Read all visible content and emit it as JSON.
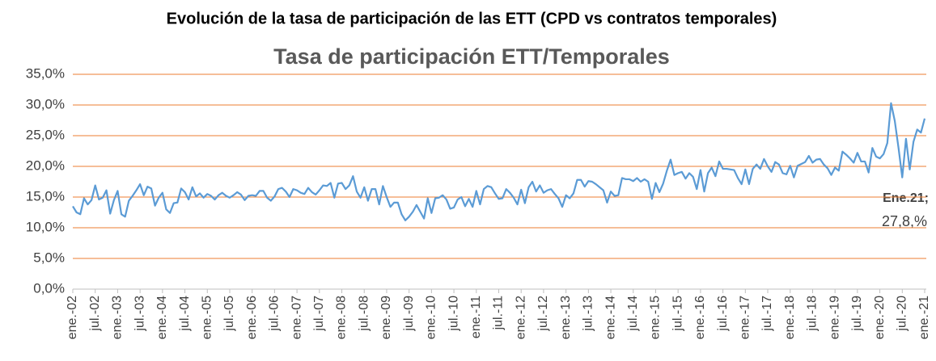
{
  "heading": "Evolución de la tasa de participación de las ETT (CPD vs contratos temporales)",
  "chart_data": {
    "type": "line",
    "title": "Tasa de participación ETT/Temporales",
    "categories": [
      "ene.-02",
      null,
      null,
      null,
      null,
      null,
      "jul.-02",
      null,
      null,
      null,
      null,
      null,
      "ene.-03",
      null,
      null,
      null,
      null,
      null,
      "jul.-03",
      null,
      null,
      null,
      null,
      null,
      "ene.-04",
      null,
      null,
      null,
      null,
      null,
      "jul.-04",
      null,
      null,
      null,
      null,
      null,
      "ene.-05",
      null,
      null,
      null,
      null,
      null,
      "jul.-05",
      null,
      null,
      null,
      null,
      null,
      "ene.-06",
      null,
      null,
      null,
      null,
      null,
      "jul.-06",
      null,
      null,
      null,
      null,
      null,
      "ene.-07",
      null,
      null,
      null,
      null,
      null,
      "jul.-07",
      null,
      null,
      null,
      null,
      null,
      "ene.-08",
      null,
      null,
      null,
      null,
      null,
      "jul.-08",
      null,
      null,
      null,
      null,
      null,
      "ene.-09",
      null,
      null,
      null,
      null,
      null,
      "jul.-09",
      null,
      null,
      null,
      null,
      null,
      "ene.-10",
      null,
      null,
      null,
      null,
      null,
      "jul.-10",
      null,
      null,
      null,
      null,
      null,
      "ene.-11",
      null,
      null,
      null,
      null,
      null,
      "jul.-11",
      null,
      null,
      null,
      null,
      null,
      "ene.-12",
      null,
      null,
      null,
      null,
      null,
      "jul.-12",
      null,
      null,
      null,
      null,
      null,
      "ene.-13",
      null,
      null,
      null,
      null,
      null,
      "jul.-13",
      null,
      null,
      null,
      null,
      null,
      "ene.-14",
      null,
      null,
      null,
      null,
      null,
      "jul.-14",
      null,
      null,
      null,
      null,
      null,
      "ene.-15",
      null,
      null,
      null,
      null,
      null,
      "jul.-15",
      null,
      null,
      null,
      null,
      null,
      "ene.-16",
      null,
      null,
      null,
      null,
      null,
      "jul.-16",
      null,
      null,
      null,
      null,
      null,
      "ene.-17",
      null,
      null,
      null,
      null,
      null,
      "jul.-17",
      null,
      null,
      null,
      null,
      null,
      "ene.-18",
      null,
      null,
      null,
      null,
      null,
      "jul.-18",
      null,
      null,
      null,
      null,
      null,
      "ene.-19",
      null,
      null,
      null,
      null,
      null,
      "jul.-19",
      null,
      null,
      null,
      null,
      null,
      "ene.-20",
      null,
      null,
      null,
      null,
      null,
      "jul.-20",
      null,
      null,
      null,
      null,
      null,
      "ene.-21"
    ],
    "series": [
      {
        "name": "Tasa de participación ETT/Temporales",
        "color": "#5b9bd5",
        "values": [
          13.5,
          12.5,
          12.2,
          14.8,
          13.8,
          14.5,
          16.9,
          14.6,
          14.9,
          16.1,
          12.3,
          14.5,
          16.0,
          12.2,
          11.8,
          14.4,
          15.2,
          16.1,
          17.1,
          15.3,
          16.7,
          16.4,
          13.6,
          14.9,
          15.7,
          13.0,
          12.4,
          14.0,
          14.1,
          16.4,
          15.8,
          14.6,
          16.6,
          15.1,
          15.6,
          14.9,
          15.5,
          15.2,
          14.6,
          15.3,
          15.7,
          15.2,
          14.9,
          15.3,
          15.8,
          15.4,
          14.5,
          15.2,
          15.3,
          15.2,
          16.0,
          16.0,
          14.9,
          14.4,
          15.1,
          16.3,
          16.5,
          15.9,
          15.0,
          16.3,
          16.1,
          15.7,
          15.5,
          16.5,
          15.8,
          15.4,
          16.1,
          16.9,
          16.8,
          17.3,
          14.9,
          17.2,
          17.3,
          16.3,
          16.9,
          18.4,
          15.9,
          14.9,
          16.6,
          14.4,
          16.3,
          16.3,
          13.8,
          16.8,
          15.0,
          13.4,
          14.1,
          14.1,
          12.2,
          11.2,
          11.8,
          12.6,
          13.7,
          12.6,
          11.5,
          14.8,
          12.4,
          14.8,
          14.9,
          15.3,
          14.6,
          13.1,
          13.3,
          14.6,
          15.0,
          13.5,
          14.7,
          13.4,
          16.0,
          13.8,
          16.3,
          16.8,
          16.6,
          15.6,
          14.7,
          14.8,
          16.3,
          15.7,
          14.9,
          13.8,
          16.2,
          14.0,
          16.6,
          17.5,
          15.9,
          16.9,
          15.7,
          16.1,
          16.3,
          15.5,
          14.8,
          13.4,
          15.3,
          14.8,
          15.6,
          17.8,
          17.8,
          16.7,
          17.6,
          17.5,
          17.1,
          16.6,
          16.1,
          14.1,
          15.9,
          15.2,
          15.3,
          18.1,
          17.9,
          17.9,
          17.6,
          18.1,
          17.5,
          17.9,
          17.5,
          14.7,
          17.3,
          15.8,
          17.2,
          19.3,
          21.1,
          18.6,
          18.9,
          19.1,
          18.0,
          18.9,
          18.3,
          16.3,
          19.4,
          15.9,
          18.9,
          19.8,
          18.4,
          20.8,
          19.6,
          19.6,
          19.5,
          19.4,
          18.1,
          17.1,
          19.5,
          17.1,
          19.6,
          20.3,
          19.6,
          21.2,
          20.0,
          19.1,
          20.7,
          20.3,
          18.9,
          18.7,
          20.1,
          18.2,
          20.1,
          20.4,
          20.7,
          21.7,
          20.6,
          21.1,
          21.2,
          20.3,
          19.7,
          18.6,
          19.8,
          19.3,
          22.4,
          21.9,
          21.3,
          20.6,
          22.2,
          20.8,
          20.8,
          19.0,
          23.0,
          21.6,
          21.3,
          22.0,
          23.8,
          30.3,
          27.4,
          23.0,
          18.2,
          24.5,
          19.5,
          24.0,
          26.0,
          25.5,
          27.8
        ]
      }
    ],
    "ylim": [
      0,
      35
    ],
    "yticks": [
      {
        "value": 0,
        "label": "0,0%"
      },
      {
        "value": 5,
        "label": "5,0%"
      },
      {
        "value": 10,
        "label": "10,0%"
      },
      {
        "value": 15,
        "label": "15,0%"
      },
      {
        "value": 20,
        "label": "20,0%"
      },
      {
        "value": 25,
        "label": "25,0%"
      },
      {
        "value": 30,
        "label": "30,0%"
      },
      {
        "value": 35,
        "label": "35,0%"
      }
    ],
    "grid": true,
    "grid_color": "#ed7d31",
    "annotation": {
      "label": "Ene.21;",
      "value_label": "27,8,%"
    }
  }
}
